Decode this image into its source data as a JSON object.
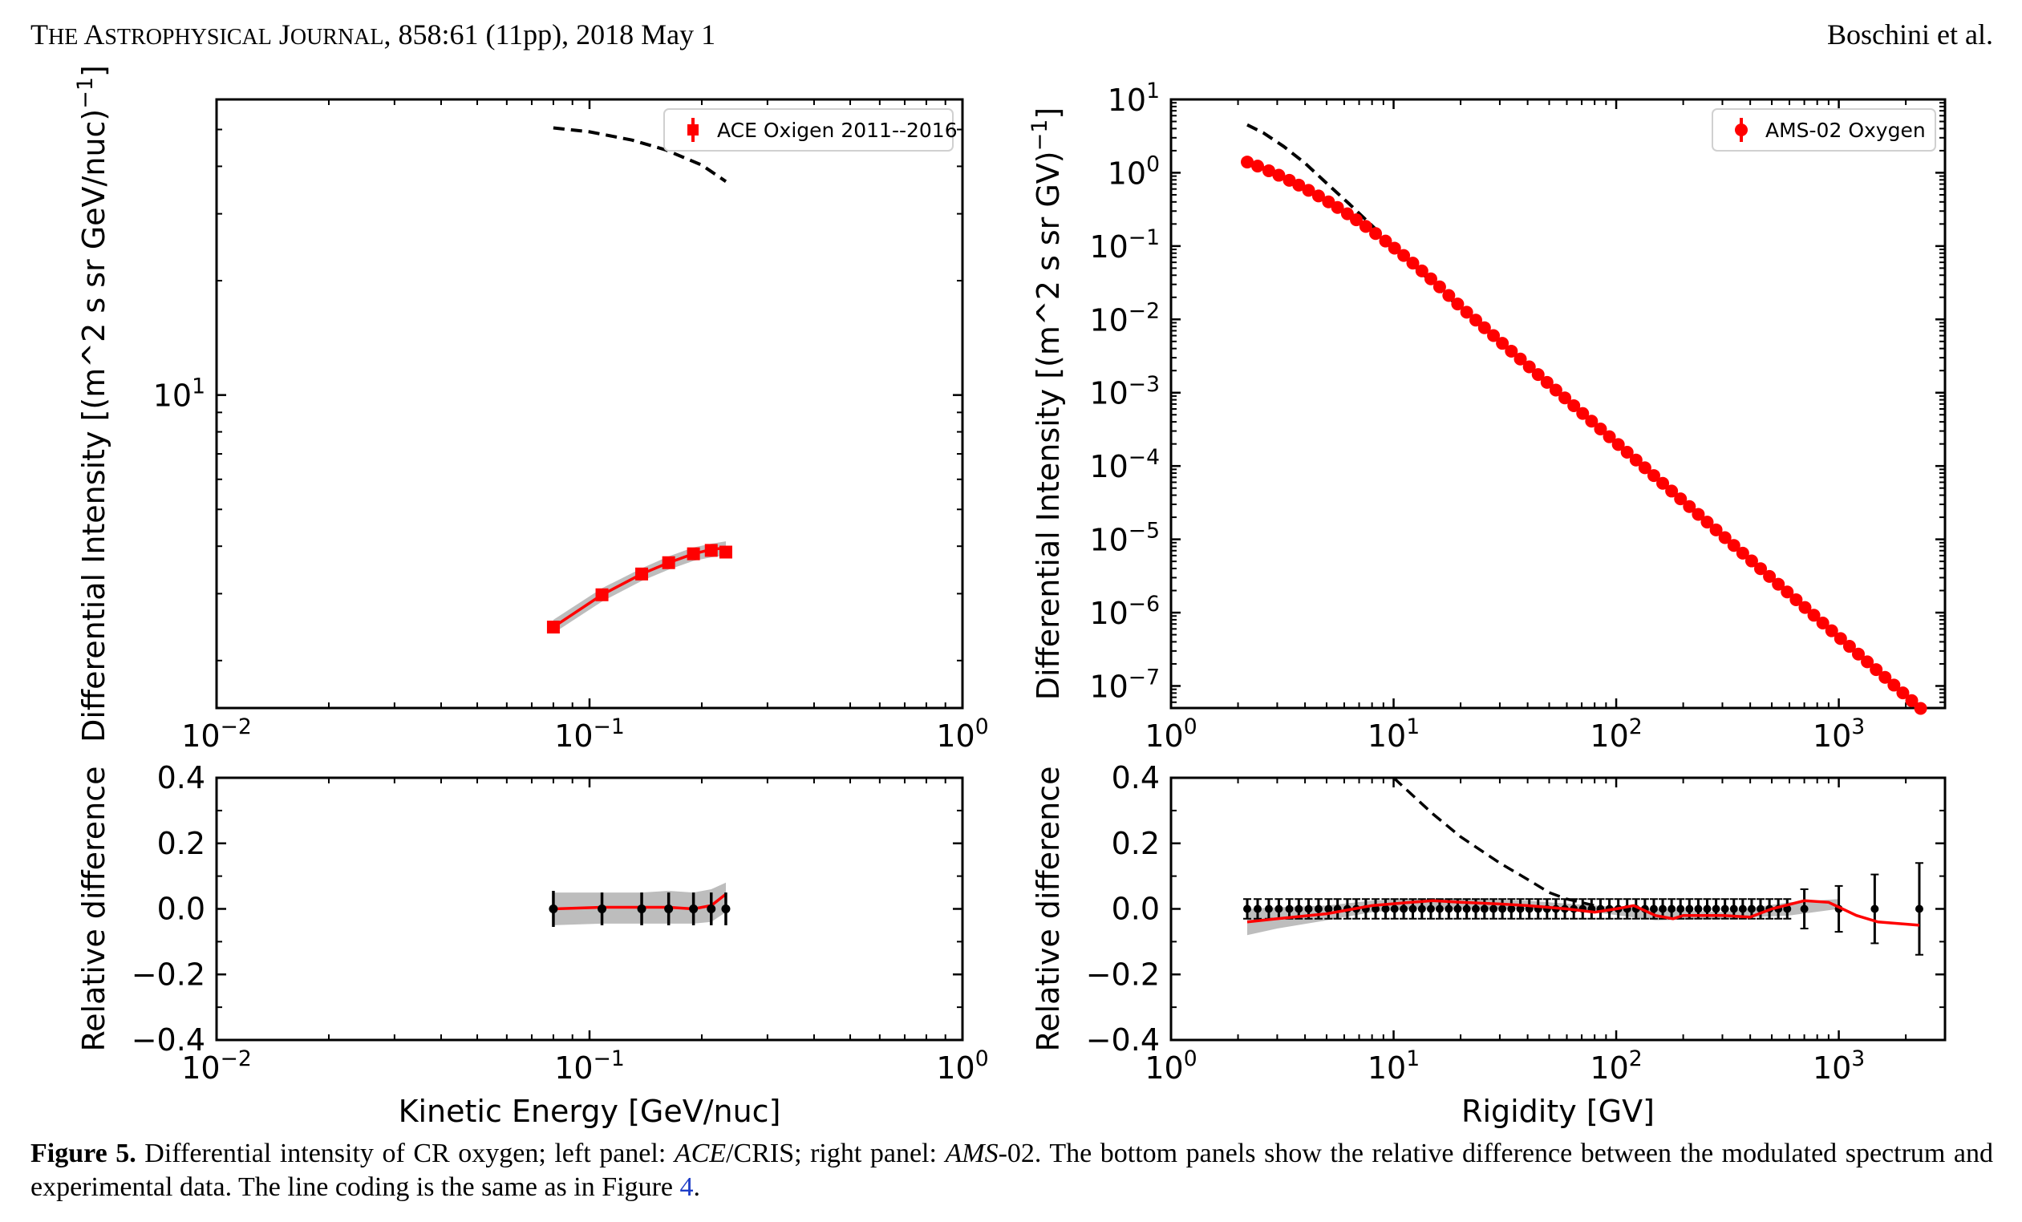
{
  "header": {
    "journal_first_letters": [
      "T",
      "A",
      "J"
    ],
    "journal_rest": [
      "HE",
      "STROPHYSICAL",
      "OURNAL"
    ],
    "citation": ", 858:61 (11pp), 2018 May 1",
    "authors": "Boschini et al."
  },
  "caption": {
    "label": "Figure 5.",
    "text_1": " Differential intensity of CR oxygen; left panel: ",
    "ace": "ACE",
    "text_2": "/CRIS; right panel: ",
    "ams": "AMS",
    "text_3": "-02. The bottom panels show the relative difference between the modulated spectrum and experimental data. The line coding is the same as in Figure ",
    "fig_ref": "4",
    "text_4": "."
  },
  "colors": {
    "data": "#ff0000",
    "band": "#bdbdbd",
    "model_dashed": "#000000",
    "residual_points": "#000000"
  },
  "chart_data": [
    {
      "id": "left-top",
      "type": "scatter",
      "xscale": "log",
      "yscale": "log",
      "xlim": [
        0.01,
        1
      ],
      "ylim": [
        1.5,
        60
      ],
      "xticks": [
        {
          "v": 0.01,
          "e": "−2"
        },
        {
          "v": 0.1,
          "e": "−1"
        },
        {
          "v": 1,
          "e": "0"
        }
      ],
      "yticks": [
        {
          "v": 10,
          "e": "1"
        }
      ],
      "ylabel": "Differential Intensity [(m^2 s sr GeV/nuc)",
      "ylabel_exp": "−1",
      "ylabel_close": "]",
      "legend": "ACE Oxigen 2011--2016",
      "legend_loc": "top-right",
      "series": [
        {
          "name": "ACE Oxigen 2011--2016",
          "x": [
            0.08,
            0.108,
            0.138,
            0.163,
            0.19,
            0.212,
            0.232
          ],
          "y": [
            2.45,
            2.98,
            3.38,
            3.62,
            3.82,
            3.9,
            3.86
          ],
          "err": [
            0.06,
            0.06,
            0.06,
            0.07,
            0.07,
            0.08,
            0.08
          ]
        }
      ],
      "model_x": [
        0.08,
        0.108,
        0.138,
        0.163,
        0.19,
        0.212,
        0.232
      ],
      "model_y": [
        2.45,
        2.98,
        3.38,
        3.62,
        3.82,
        3.92,
        3.96
      ],
      "band_x": [
        0.08,
        0.108,
        0.138,
        0.163,
        0.19,
        0.212,
        0.232
      ],
      "band_lo": [
        2.36,
        2.86,
        3.24,
        3.47,
        3.66,
        3.74,
        3.78
      ],
      "band_hi": [
        2.56,
        3.1,
        3.5,
        3.76,
        3.97,
        4.06,
        4.12
      ],
      "dashed_x": [
        0.08,
        0.1,
        0.13,
        0.16,
        0.2,
        0.232
      ],
      "dashed_y": [
        50.5,
        49.3,
        46.9,
        44.2,
        40.3,
        36.5
      ]
    },
    {
      "id": "left-bottom",
      "type": "scatter",
      "xscale": "log",
      "yscale": "linear",
      "xlim": [
        0.01,
        1
      ],
      "ylim": [
        -0.4,
        0.4
      ],
      "xticks": [
        {
          "v": 0.01,
          "e": "−2"
        },
        {
          "v": 0.1,
          "e": "−1"
        },
        {
          "v": 1,
          "e": "0"
        }
      ],
      "yticks": [
        {
          "v": 0.4,
          "t": "0.4"
        },
        {
          "v": 0.2,
          "t": "0.2"
        },
        {
          "v": 0,
          "t": "0.0"
        },
        {
          "v": -0.2,
          "t": "−0.2"
        },
        {
          "v": -0.4,
          "t": "−0.4"
        }
      ],
      "xlabel": "Kinetic Energy [GeV/nuc]",
      "ylabel": "Relative difference",
      "points_x": [
        0.08,
        0.108,
        0.138,
        0.163,
        0.19,
        0.212,
        0.232
      ],
      "points_y": [
        0,
        0,
        0,
        0,
        0,
        0,
        0
      ],
      "err": [
        0.055,
        0.05,
        0.05,
        0.05,
        0.05,
        0.05,
        0.05
      ],
      "model_y": [
        0,
        0.005,
        0.005,
        0.005,
        0,
        0.01,
        0.045
      ],
      "band_lo": [
        -0.05,
        -0.045,
        -0.045,
        -0.045,
        -0.045,
        -0.04,
        -0.01
      ],
      "band_hi": [
        0.05,
        0.05,
        0.05,
        0.055,
        0.05,
        0.06,
        0.08
      ]
    },
    {
      "id": "right-top",
      "type": "scatter",
      "xscale": "log",
      "yscale": "log",
      "xlim": [
        1,
        3000
      ],
      "ylim": [
        5e-08,
        10
      ],
      "xticks": [
        {
          "v": 1,
          "e": "0"
        },
        {
          "v": 10,
          "e": "1"
        },
        {
          "v": 100,
          "e": "2"
        },
        {
          "v": 1000,
          "e": "3"
        }
      ],
      "yticks": [
        {
          "v": 10,
          "e": "1"
        },
        {
          "v": 1,
          "e": "0"
        },
        {
          "v": 0.1,
          "e": "−1"
        },
        {
          "v": 0.01,
          "e": "−2"
        },
        {
          "v": 0.001,
          "e": "−3"
        },
        {
          "v": 0.0001,
          "e": "−4"
        },
        {
          "v": 1e-05,
          "e": "−5"
        },
        {
          "v": 1e-06,
          "e": "−6"
        },
        {
          "v": 1e-07,
          "e": "−7"
        }
      ],
      "ylabel": "Differential Intensity  [(m^2 s sr GV)",
      "ylabel_exp": "−1",
      "ylabel_close": "]",
      "legend": "AMS-02 Oxygen",
      "legend_loc": "top-right",
      "series": [
        {
          "name": "AMS-02 Oxygen",
          "x": [
            2.2,
            2.45,
            2.75,
            3.05,
            3.4,
            3.75,
            4.15,
            4.6,
            5.1,
            5.6,
            6.2,
            6.8,
            7.5,
            8.3,
            9.2,
            10.1,
            11.1,
            12.2,
            13.4,
            14.7,
            16.1,
            17.7,
            19.4,
            21.3,
            23.4,
            25.6,
            28.1,
            30.8,
            33.8,
            37.1,
            40.7,
            44.6,
            48.9,
            53.6,
            58.8,
            64.5,
            70.7,
            77.5,
            85,
            93.2,
            102.2,
            112,
            122.8,
            134.6,
            147.6,
            161.8,
            177.4,
            194.5,
            213.2,
            233.8,
            256.3,
            281,
            308.1,
            337.8,
            370.3,
            406,
            445.1,
            488,
            535,
            586.6,
            643.1,
            705.1,
            773,
            847.5,
            929.2,
            1018.7,
            1116.9,
            1224.5,
            1342.5,
            1471.9,
            1613.7,
            1769.2,
            1939.7,
            2126.6,
            2331.5
          ],
          "y": null
        }
      ],
      "series_spec": {
        "a": 1.6,
        "s0": 1.0,
        "p_low": 1.0,
        "p_high": 2.65,
        "r_break": 20,
        "r_min": 2.2
      },
      "dashed_x": [
        2.2,
        2.6,
        3.2,
        4,
        5,
        6.3,
        8,
        10,
        12.5,
        16,
        20
      ],
      "dashed_y": [
        4.5,
        3.5,
        2.3,
        1.35,
        0.72,
        0.38,
        0.19,
        0.098,
        0.052,
        0.026,
        0.0142
      ]
    },
    {
      "id": "right-bottom",
      "type": "scatter",
      "xscale": "log",
      "yscale": "linear",
      "xlim": [
        1,
        3000
      ],
      "ylim": [
        -0.4,
        0.4
      ],
      "xticks": [
        {
          "v": 1,
          "e": "0"
        },
        {
          "v": 10,
          "e": "1"
        },
        {
          "v": 100,
          "e": "2"
        },
        {
          "v": 1000,
          "e": "3"
        }
      ],
      "yticks": [
        {
          "v": 0.4,
          "t": "0.4"
        },
        {
          "v": 0.2,
          "t": "0.2"
        },
        {
          "v": 0,
          "t": "0.0"
        },
        {
          "v": -0.2,
          "t": "−0.2"
        },
        {
          "v": -0.4,
          "t": "−0.4"
        }
      ],
      "xlabel": "Rigidity [GV]",
      "ylabel": "Relative difference",
      "model_x": [
        2.2,
        3,
        5,
        8,
        12,
        15,
        20,
        30,
        40,
        60,
        80,
        100,
        120,
        150,
        180,
        200,
        250,
        300,
        400,
        500,
        700,
        900,
        1200,
        1500,
        2300
      ],
      "model_y": [
        -0.04,
        -0.03,
        -0.015,
        0.01,
        0.02,
        0.025,
        0.02,
        0.015,
        0.01,
        0.0,
        -0.01,
        0.0,
        0.01,
        -0.02,
        -0.03,
        -0.02,
        -0.02,
        -0.02,
        -0.025,
        0.0,
        0.025,
        0.02,
        -0.02,
        -0.04,
        -0.05
      ],
      "band_x": [
        2.2,
        3,
        5,
        8,
        12,
        20,
        40,
        80,
        150,
        300,
        600,
        1000
      ],
      "band_lo": [
        -0.08,
        -0.06,
        -0.035,
        -0.01,
        0.0,
        0.0,
        0.0,
        -0.01,
        -0.035,
        -0.03,
        -0.02,
        0.0
      ],
      "band_hi": [
        0.0,
        0.005,
        0.01,
        0.025,
        0.03,
        0.03,
        0.025,
        0.01,
        0.0,
        -0.01,
        0.02,
        0.03
      ],
      "dashed_x": [
        10,
        15,
        20,
        30,
        40,
        50,
        60,
        80
      ],
      "dashed_y": [
        0.4,
        0.29,
        0.22,
        0.14,
        0.09,
        0.05,
        0.03,
        0.01
      ],
      "err_small": 0.03,
      "err_tail": [
        {
          "x": 700,
          "e": 0.06
        },
        {
          "x": 1000,
          "e": 0.07
        },
        {
          "x": 1450,
          "e": 0.105
        },
        {
          "x": 2300,
          "e": 0.14
        }
      ]
    }
  ]
}
